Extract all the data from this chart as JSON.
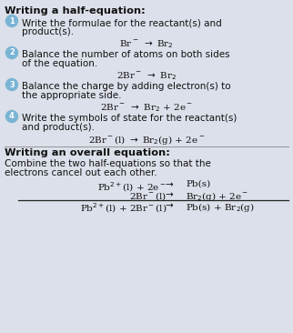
{
  "bg_color": "#dce0ea",
  "title_half": "Writing a half-equation:",
  "title_overall": "Writing an overall equation:",
  "step1_text1": "Write the formulae for the reactant(s) and",
  "step1_text2": "product(s).",
  "step2_text1": "Balance the number of atoms on both sides",
  "step2_text2": "of the equation.",
  "step3_text1": "Balance the charge by adding electron(s) to",
  "step3_text2": "the appropriate side.",
  "step4_text1": "Write the symbols of state for the reactant(s)",
  "step4_text2": "and product(s).",
  "overall_text1": "Combine the two half-equations so that the",
  "overall_text2": "electrons cancel out each other.",
  "circle_color": "#7ab4d4",
  "font_size_body": 7.5,
  "font_size_eq": 7.5,
  "font_size_title": 8.2,
  "text_color": "#111111"
}
